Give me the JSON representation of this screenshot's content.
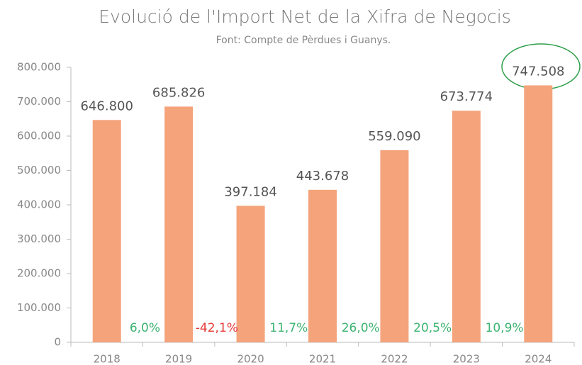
{
  "chart_data": {
    "type": "bar",
    "title": "Evolució de l'Import Net de la Xifra de Negocis",
    "subtitle": "Font: Compte de Pèrdues i Guanys.",
    "categories": [
      "2018",
      "2019",
      "2020",
      "2021",
      "2022",
      "2023",
      "2024"
    ],
    "values": [
      646800,
      685826,
      397184,
      443678,
      559090,
      673774,
      747508
    ],
    "value_labels": [
      "646.800",
      "685.826",
      "397.184",
      "443.678",
      "559.090",
      "673.774",
      "747.508"
    ],
    "color": "#f4a37b",
    "ylim": [
      0,
      800000
    ],
    "yticks": [
      0,
      {
        "value": 100000,
        "label": "100.000"
      },
      {
        "value": 200000,
        "label": "200.000"
      },
      {
        "value": 300000,
        "label": "300.000"
      },
      {
        "value": 400000,
        "label": "400.000"
      },
      {
        "value": 500000,
        "label": "500.000"
      },
      {
        "value": 600000,
        "label": "600.000"
      },
      {
        "value": 700000,
        "label": "700.000"
      },
      {
        "value": 800000,
        "label": "800.000"
      }
    ],
    "annotations": [
      {
        "text": "6,0%",
        "color": "#3cb371"
      },
      {
        "text": "-42,1%",
        "color": "#e53935"
      },
      {
        "text": "11,7%",
        "color": "#3cb371"
      },
      {
        "text": "26,0%",
        "color": "#3cb371"
      },
      {
        "text": "20,5%",
        "color": "#3cb371"
      },
      {
        "text": "10,9%",
        "color": "#3cb371"
      }
    ]
  }
}
